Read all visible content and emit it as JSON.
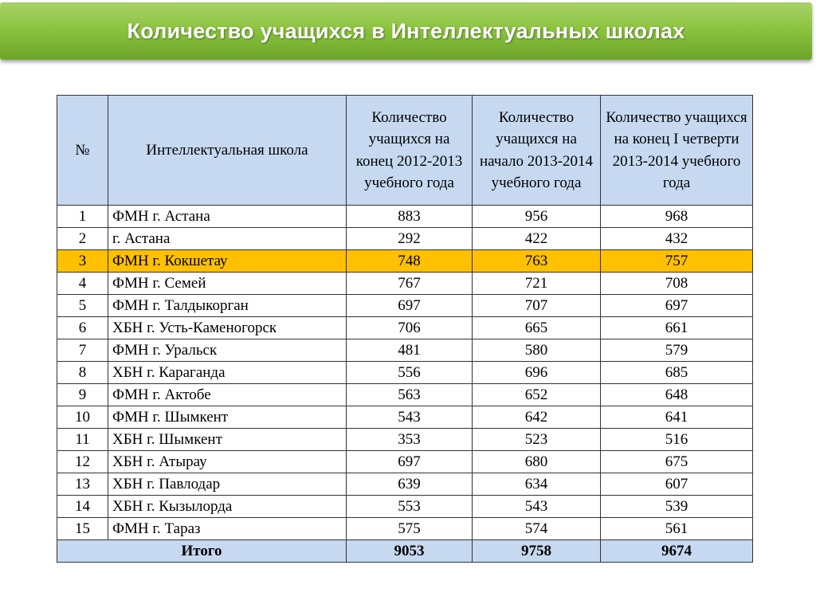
{
  "title": "Количество учащихся в Интеллектуальных школах",
  "headers": {
    "num": "№",
    "school": "Интеллектуальная школа",
    "col1": "Количество учащихся на конец 2012-2013 учебного года",
    "col2": "Количество учащихся на начало 2013-2014 учебного года",
    "col3": "Количество учащихся на конец I четверти 2013-2014 учебного года"
  },
  "rows": [
    {
      "num": "1",
      "school": "ФМН г. Астана",
      "v1": "883",
      "v2": "956",
      "v3": "968"
    },
    {
      "num": "2",
      "school": "г. Астана",
      "v1": "292",
      "v2": "422",
      "v3": "432"
    },
    {
      "num": "3",
      "school": "ФМН г. Кокшетау",
      "v1": "748",
      "v2": "763",
      "v3": "757"
    },
    {
      "num": "4",
      "school": "ФМН г. Семей",
      "v1": "767",
      "v2": "721",
      "v3": "708"
    },
    {
      "num": "5",
      "school": "ФМН г. Талдыкорган",
      "v1": "697",
      "v2": "707",
      "v3": "697"
    },
    {
      "num": "6",
      "school": "ХБН г. Усть-Каменогорск",
      "v1": "706",
      "v2": "665",
      "v3": "661"
    },
    {
      "num": "7",
      "school": "ФМН г. Уральск",
      "v1": "481",
      "v2": "580",
      "v3": "579"
    },
    {
      "num": "8",
      "school": "ХБН г. Караганда",
      "v1": "556",
      "v2": "696",
      "v3": "685"
    },
    {
      "num": "9",
      "school": "ФМН г. Актобе",
      "v1": "563",
      "v2": "652",
      "v3": "648"
    },
    {
      "num": "10",
      "school": "ФМН г. Шымкент",
      "v1": "543",
      "v2": "642",
      "v3": "641"
    },
    {
      "num": "11",
      "school": "ХБН г. Шымкент",
      "v1": "353",
      "v2": "523",
      "v3": "516"
    },
    {
      "num": "12",
      "school": "ХБН г. Атырау",
      "v1": "697",
      "v2": "680",
      "v3": "675"
    },
    {
      "num": "13",
      "school": "ХБН г. Павлодар",
      "v1": "639",
      "v2": "634",
      "v3": "607"
    },
    {
      "num": "14",
      "school": "ХБН г. Кызылорда",
      "v1": "553",
      "v2": "543",
      "v3": "539"
    },
    {
      "num": "15",
      "school": "ФМН г. Тараз",
      "v1": "575",
      "v2": "574",
      "v3": "561"
    }
  ],
  "highlighted_row": 3,
  "highlight_color": "#ffc000",
  "header_color": "#c6d9f1",
  "title_bar_color": "#8cc43f",
  "total": {
    "label": "Итого",
    "v1": "9053",
    "v2": "9758",
    "v3": "9674"
  }
}
